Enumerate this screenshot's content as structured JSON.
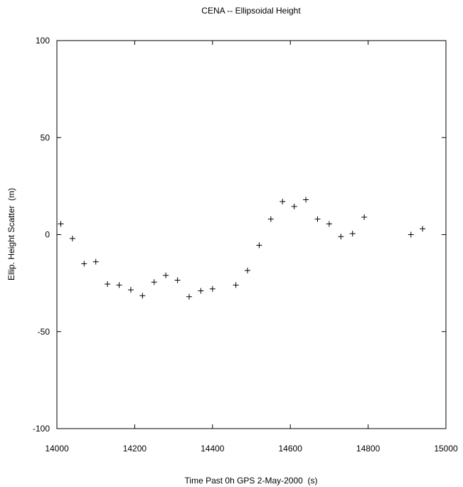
{
  "chart_data": {
    "type": "scatter",
    "title": "CENA -- Ellipsoidal Height",
    "x_label": "Time Past 0h GPS 2-May-2000  (s)",
    "y_label": "Ellip. Height Scatter  (m)",
    "x": [
      14010,
      14040,
      14070,
      14100,
      14130,
      14160,
      14190,
      14220,
      14250,
      14280,
      14310,
      14340,
      14370,
      14400,
      14460,
      14490,
      14520,
      14550,
      14580,
      14610,
      14640,
      14670,
      14700,
      14730,
      14760,
      14790,
      14910,
      14940
    ],
    "values": [
      5.5,
      -2,
      -15,
      -14,
      -25.5,
      -26,
      -28.5,
      -31.5,
      -24.5,
      -21,
      -23.5,
      -32,
      -29,
      -28,
      -26,
      -18.5,
      -5.5,
      8,
      17,
      14.5,
      18,
      8,
      5.5,
      -1,
      0.5,
      9,
      0,
      3
    ],
    "color": "#000000",
    "xlim": [
      14000,
      15000
    ],
    "xticks": [
      14000,
      14200,
      14400,
      14600,
      14800,
      15000
    ],
    "ylim": [
      -100,
      100
    ],
    "yticks": [
      -100,
      -50,
      0,
      50,
      100
    ]
  }
}
